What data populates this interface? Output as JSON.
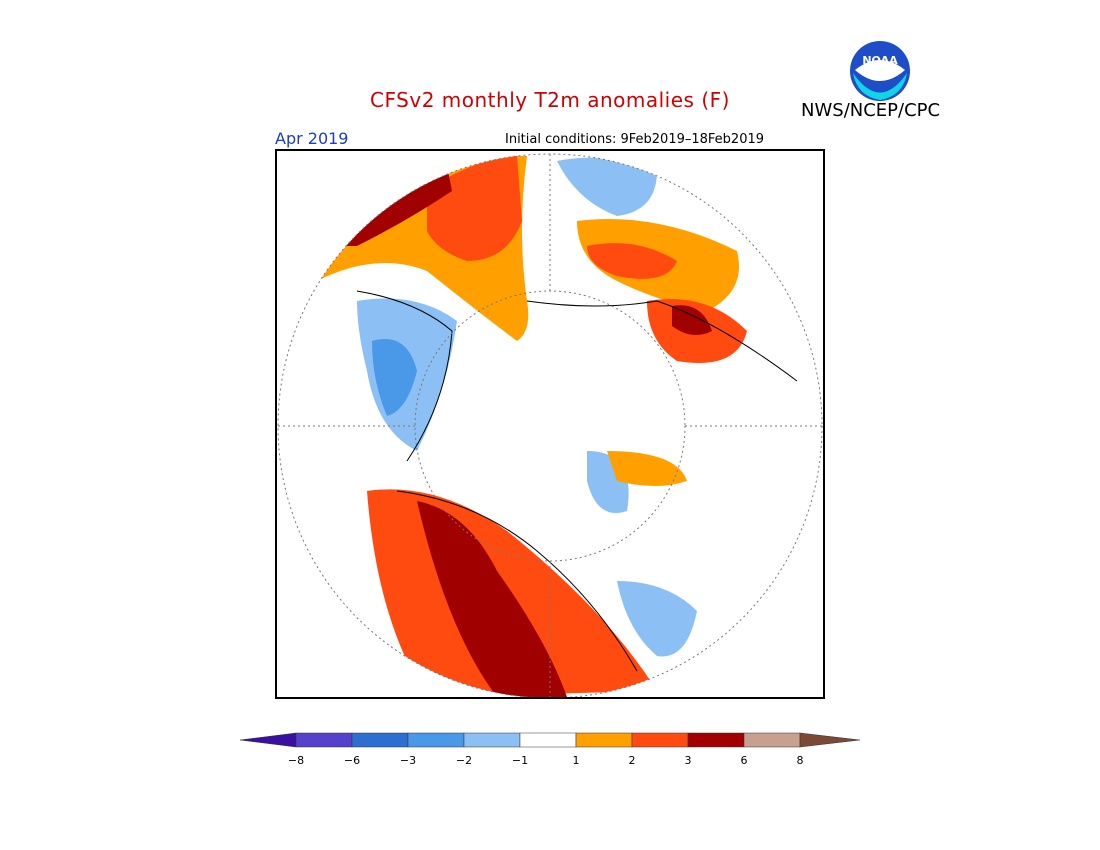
{
  "header": {
    "title": "CFSv2 monthly T2m anomalies (F)",
    "organization": "NWS/NCEP/CPC",
    "month": "Apr 2019",
    "initial_conditions": "Initial conditions: 9Feb2019–18Feb2019"
  },
  "logo": {
    "text": "NOAA",
    "icon": "noaa-logo"
  },
  "colors": {
    "title": "#d00000",
    "month": "#1a3ccc",
    "bins": [
      "#3a10a0",
      "#5541cc",
      "#2c6fd0",
      "#4a98e8",
      "#8cc0f4",
      "#ffffff",
      "#ffa000",
      "#ff4a10",
      "#a00000",
      "#c8a090",
      "#7a4a36"
    ]
  },
  "legend": {
    "tick_labels": [
      "−8",
      "−6",
      "−3",
      "−2",
      "−1",
      "1",
      "2",
      "3",
      "6",
      "8"
    ]
  }
}
